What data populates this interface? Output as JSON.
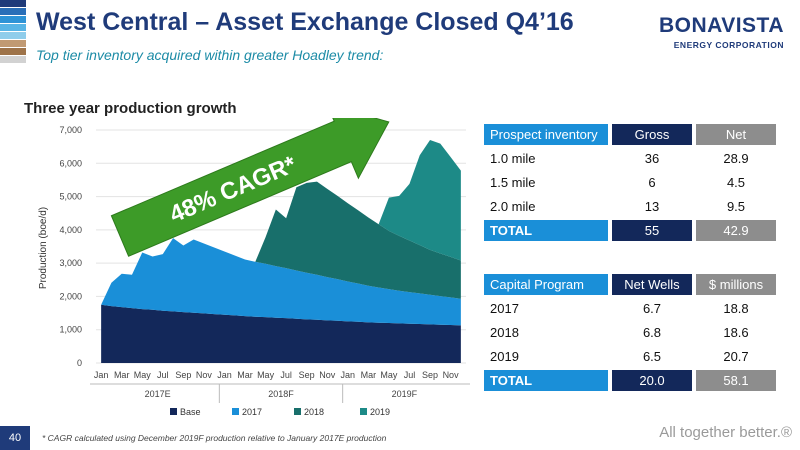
{
  "header": {
    "title": "West Central – Asset Exchange Closed Q4’16",
    "subtitle": "Top tier inventory acquired within greater Hoadley trend:"
  },
  "logo": {
    "name": "BONAVISTA",
    "sub": "ENERGY CORPORATION"
  },
  "colors": {
    "stripes": [
      "#1f3b7a",
      "#2a6fb8",
      "#2e93d6",
      "#58b5e6",
      "#8fcdeb",
      "#c19a73",
      "#9e7349",
      "#d2d2d2"
    ],
    "base": "#13285a",
    "y2017": "#1a8fd8",
    "y2018": "#186f6b",
    "y2019": "#1d8a87",
    "arrow": "#3d9b28"
  },
  "section_title": "Three year production growth",
  "chart_data": {
    "type": "area",
    "ylabel": "Production (boe/d)",
    "xlabel": "",
    "ylim": [
      0,
      7000
    ],
    "yticks": [
      "0",
      "1,000",
      "2,000",
      "3,000",
      "4,000",
      "5,000",
      "6,000",
      "7,000"
    ],
    "month_labels": [
      "Jan",
      "Mar",
      "May",
      "Jul",
      "Sep",
      "Nov",
      "Jan",
      "Mar",
      "May",
      "Jul",
      "Sep",
      "Nov",
      "Jan",
      "Mar",
      "May",
      "Jul",
      "Sep",
      "Nov"
    ],
    "year_labels": [
      "2017E",
      "2018F",
      "2019F"
    ],
    "annotation": "48% CAGR*",
    "series": [
      {
        "name": "Base",
        "values": [
          1750,
          1710,
          1680,
          1650,
          1620,
          1600,
          1570,
          1550,
          1530,
          1510,
          1490,
          1470,
          1450,
          1430,
          1410,
          1390,
          1380,
          1360,
          1350,
          1330,
          1310,
          1300,
          1280,
          1270,
          1250,
          1240,
          1220,
          1210,
          1200,
          1190,
          1180,
          1170,
          1160,
          1150,
          1140,
          1130
        ]
      },
      {
        "name": "2017",
        "values": [
          0,
          700,
          1000,
          1000,
          1700,
          1600,
          1700,
          2200,
          2000,
          2200,
          2100,
          2000,
          1900,
          1800,
          1700,
          1650,
          1600,
          1550,
          1500,
          1450,
          1400,
          1350,
          1300,
          1250,
          1200,
          1150,
          1100,
          1060,
          1020,
          980,
          950,
          920,
          890,
          860,
          830,
          800
        ]
      },
      {
        "name": "2018",
        "values": [
          0,
          0,
          0,
          0,
          0,
          0,
          0,
          0,
          0,
          0,
          0,
          0,
          0,
          0,
          0,
          0,
          800,
          1700,
          1500,
          2500,
          2700,
          2800,
          2650,
          2500,
          2350,
          2200,
          2050,
          1900,
          1750,
          1650,
          1550,
          1450,
          1350,
          1280,
          1220,
          1150
        ]
      },
      {
        "name": "2019",
        "values": [
          0,
          0,
          0,
          0,
          0,
          0,
          0,
          0,
          0,
          0,
          0,
          0,
          0,
          0,
          0,
          0,
          0,
          0,
          0,
          0,
          0,
          0,
          0,
          0,
          0,
          0,
          0,
          0,
          1000,
          1200,
          1700,
          2700,
          3300,
          3300,
          3000,
          2700
        ]
      }
    ]
  },
  "prospect_table": {
    "headers": [
      "Prospect inventory",
      "Gross",
      "Net"
    ],
    "rows": [
      [
        "1.0 mile",
        "36",
        "28.9"
      ],
      [
        "1.5 mile",
        "6",
        "4.5"
      ],
      [
        "2.0 mile",
        "13",
        "9.5"
      ]
    ],
    "total": [
      "TOTAL",
      "55",
      "42.9"
    ]
  },
  "capital_table": {
    "headers": [
      "Capital Program",
      "Net Wells",
      "$ millions"
    ],
    "rows": [
      [
        "2017",
        "6.7",
        "18.8"
      ],
      [
        "2018",
        "6.8",
        "18.6"
      ],
      [
        "2019",
        "6.5",
        "20.7"
      ]
    ],
    "total": [
      "TOTAL",
      "20.0",
      "58.1"
    ]
  },
  "footer": {
    "page": "40",
    "footnote": "* CAGR calculated using December 2019F production relative to January 2017E production",
    "tagline": "All together better.®"
  }
}
